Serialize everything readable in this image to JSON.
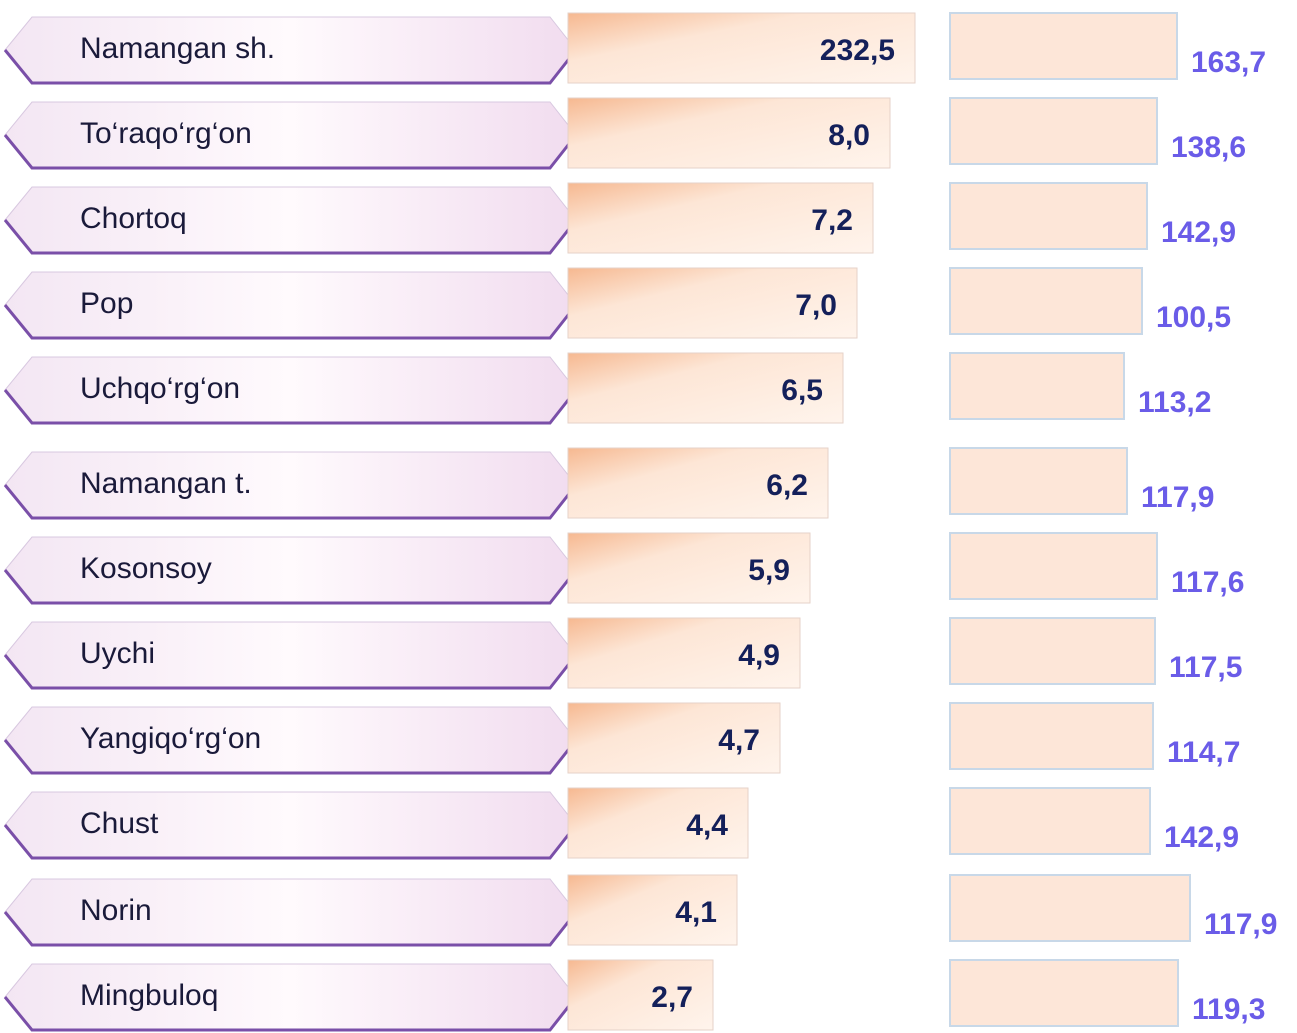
{
  "rows": [
    {
      "name": "Namangan sh.",
      "value": "232,5",
      "index": "163,7"
    },
    {
      "name": "To‘raqo‘rg‘on",
      "value": "8,0",
      "index": "138,6"
    },
    {
      "name": "Chortoq",
      "value": "7,2",
      "index": "142,9"
    },
    {
      "name": "Pop",
      "value": "7,0",
      "index": "100,5"
    },
    {
      "name": "Uchqo‘rg‘on",
      "value": "6,5",
      "index": "113,2"
    },
    {
      "name": "Namangan t.",
      "value": "6,2",
      "index": "117,9"
    },
    {
      "name": "Kosonsoy",
      "value": "5,9",
      "index": "117,6"
    },
    {
      "name": "Uychi",
      "value": "4,9",
      "index": "117,5"
    },
    {
      "name": "Yangiqo‘rg‘on",
      "value": "4,7",
      "index": "114,7"
    },
    {
      "name": "Chust",
      "value": "4,4",
      "index": "142,9"
    },
    {
      "name": "Norin",
      "value": "4,1",
      "index": "117,9"
    },
    {
      "name": "Mingbuloq",
      "value": "2,7",
      "index": "119,3"
    }
  ]
}
